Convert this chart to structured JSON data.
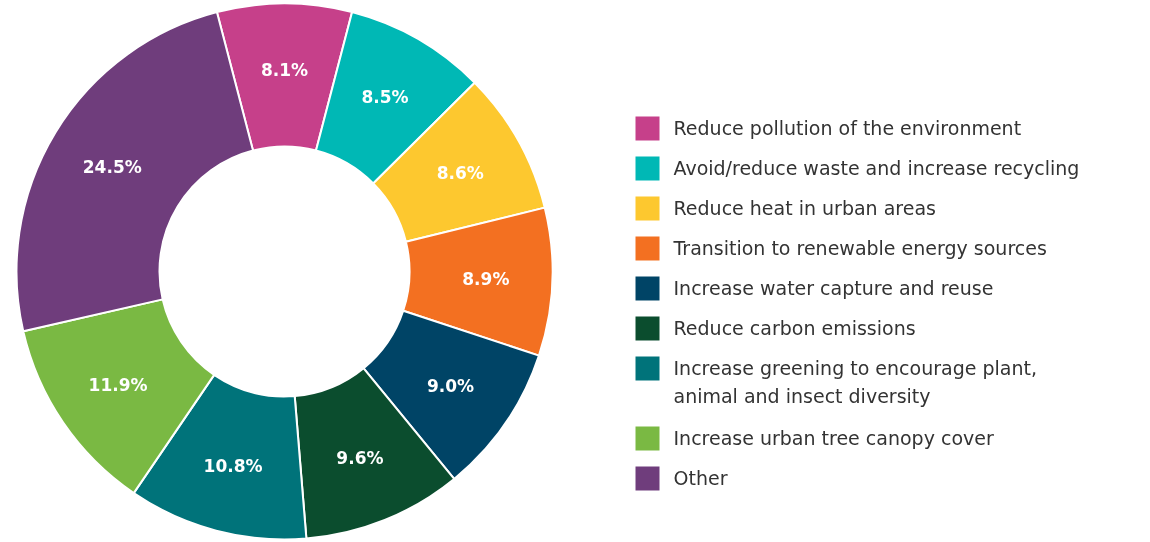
{
  "chart_data": {
    "type": "donut",
    "categories": [
      "Reduce pollution of the environment",
      "Avoid/reduce waste and increase recycling",
      "Reduce heat in urban areas",
      "Transition to renewable energy sources",
      "Increase water capture and reuse",
      "Reduce carbon emissions",
      "Increase greening to encourage plant, animal and insect diversity",
      "Increase urban tree canopy cover",
      "Other"
    ],
    "values": [
      8.1,
      8.5,
      8.6,
      8.9,
      9.0,
      9.6,
      10.8,
      11.9,
      24.5
    ],
    "colors": [
      "#c6408a",
      "#00b8b5",
      "#fdc82f",
      "#f37021",
      "#004466",
      "#0b4d2e",
      "#00737a",
      "#7ab943",
      "#6f3d7c"
    ],
    "value_labels": [
      "8.1%",
      "8.5%",
      "8.6%",
      "8.9%",
      "9.0%",
      "9.6%",
      "10.8%",
      "11.9%",
      "24.5%"
    ],
    "legend": "right"
  }
}
